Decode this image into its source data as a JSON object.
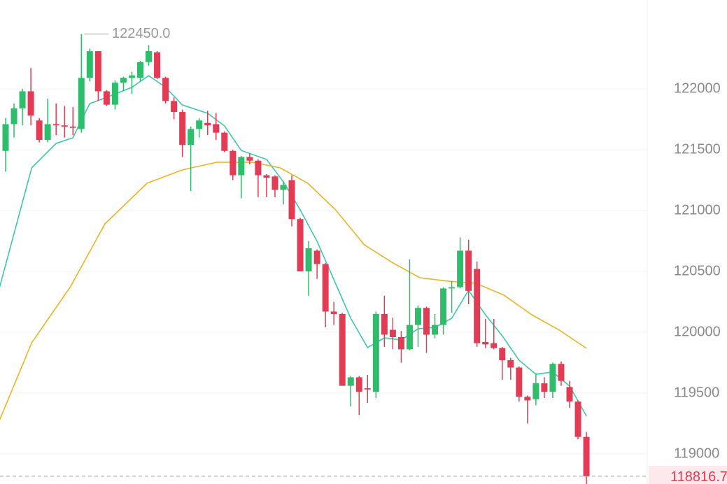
{
  "chart_data": {
    "type": "candlestick",
    "ylim": [
      118753,
      122730
    ],
    "yticks": [
      119000,
      119500,
      120000,
      120500,
      121000,
      121500,
      122000
    ],
    "grid": true,
    "up_color": "#2ebd6b",
    "down_color": "#e33b54",
    "open": [
      121490,
      121710,
      121840,
      121980,
      121740,
      121580,
      121710,
      121700,
      121690,
      121670,
      122090,
      122310,
      121980,
      121870,
      122050,
      122090,
      122090,
      122220,
      122300,
      122090,
      121900,
      121810,
      121540,
      121670,
      121720,
      121710,
      121640,
      121490,
      121290,
      121440,
      121410,
      121290,
      121280,
      121170,
      121250,
      120930,
      120500,
      120670,
      120560,
      120170,
      120150,
      119560,
      119630,
      119540,
      119510,
      120150,
      120020,
      119960,
      119860,
      120060,
      120200,
      119980,
      120060,
      120360,
      120370,
      120670,
      120520,
      119920,
      119910,
      119870,
      119770,
      119710,
      119470,
      119450,
      119580,
      119510,
      119740,
      119550,
      119430,
      119140
    ],
    "high": [
      121760,
      121880,
      122000,
      122170,
      121760,
      121920,
      121880,
      121860,
      121850,
      122450,
      122330,
      122310,
      121990,
      122070,
      122100,
      122140,
      122230,
      122360,
      122310,
      122100,
      121930,
      121830,
      121690,
      121760,
      121820,
      121800,
      121650,
      121500,
      121450,
      121470,
      121420,
      121300,
      121290,
      121240,
      121290,
      120940,
      120750,
      120680,
      120570,
      120250,
      120160,
      119640,
      119640,
      119650,
      120170,
      120300,
      120120,
      120010,
      120600,
      120220,
      120210,
      120150,
      120370,
      120420,
      120780,
      120760,
      120580,
      120110,
      120110,
      119880,
      119790,
      119720,
      119480,
      119660,
      119630,
      119750,
      119760,
      119600,
      119440,
      119180
    ],
    "low": [
      121320,
      121600,
      121700,
      121700,
      121560,
      121560,
      121620,
      121600,
      121620,
      121640,
      122060,
      121900,
      121860,
      121830,
      121980,
      121960,
      122060,
      122190,
      122080,
      121880,
      121750,
      121440,
      121160,
      121600,
      121620,
      121580,
      121480,
      121250,
      121100,
      121380,
      121110,
      121110,
      121110,
      121050,
      120870,
      120500,
      120300,
      120440,
      120040,
      120060,
      119560,
      119390,
      119320,
      119420,
      119460,
      119880,
      119860,
      119750,
      119850,
      119880,
      119830,
      119950,
      119980,
      120160,
      120360,
      120230,
      119880,
      119870,
      119860,
      119610,
      119610,
      119430,
      119250,
      119400,
      119460,
      119460,
      119560,
      119380,
      119120,
      118750
    ],
    "close": [
      121710,
      121840,
      121980,
      121780,
      121580,
      121710,
      121700,
      121690,
      121680,
      122090,
      122310,
      121980,
      121870,
      122050,
      122090,
      122110,
      122220,
      122310,
      122090,
      121900,
      121810,
      121540,
      121670,
      121740,
      121700,
      121640,
      121490,
      121290,
      121440,
      121410,
      121290,
      121270,
      121170,
      121210,
      120930,
      120500,
      120690,
      120560,
      120170,
      120150,
      119560,
      119630,
      119510,
      119530,
      120150,
      119980,
      119960,
      119860,
      120060,
      120200,
      119980,
      120060,
      120360,
      120370,
      120670,
      120340,
      119910,
      119900,
      119870,
      119770,
      119710,
      119470,
      119440,
      119580,
      119510,
      119740,
      119600,
      119430,
      119140,
      118817
    ],
    "lines": [
      {
        "color": "#3cc8b0",
        "x": [
          -0.7,
          3.1,
          6,
          8,
          9,
          10,
          11.8,
          15,
          17,
          19,
          21,
          24,
          26,
          28,
          31,
          33,
          35,
          37,
          39,
          41,
          43,
          45,
          47,
          49,
          51,
          53,
          55,
          57,
          59,
          61,
          63,
          65,
          67,
          69
        ],
        "values": [
          120374,
          121351,
          121552,
          121598,
          121742,
          121879,
          121925,
          122012,
          122109,
          122012,
          121868,
          121799,
          121696,
          121494,
          121420,
          121236,
          121006,
          120747,
          120431,
          120115,
          119874,
          119954,
          119937,
          120029,
          120040,
          120115,
          120345,
          120144,
          119971,
          119770,
          119655,
          119673,
          119558,
          119311
        ]
      },
      {
        "color": "#ecb424",
        "x": [
          -0.7,
          3.1,
          7.7,
          11.8,
          16.8,
          21,
          25.1,
          29.3,
          32.6,
          35.9,
          39.2,
          42.6,
          45.9,
          49.2,
          52.5,
          55.9,
          59.2,
          62.5,
          65.8,
          69
        ],
        "values": [
          119282,
          119914,
          120374,
          120891,
          121224,
          121334,
          121397,
          121397,
          121351,
          121224,
          121006,
          120719,
          120575,
          120448,
          120420,
          120402,
          120305,
          120144,
          120017,
          119868
        ]
      }
    ],
    "high_label": {
      "value": 122450,
      "label": "122450.0"
    },
    "last_price": 118816.7
  }
}
